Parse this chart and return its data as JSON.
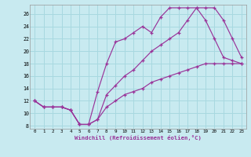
{
  "xlabel": "Windchill (Refroidissement éolien,°C)",
  "background_color": "#c8eaf0",
  "grid_color": "#a8d8e0",
  "line_color": "#993399",
  "xlim": [
    -0.5,
    23.5
  ],
  "ylim": [
    7.5,
    27.5
  ],
  "xticks": [
    0,
    1,
    2,
    3,
    4,
    5,
    6,
    7,
    8,
    9,
    10,
    11,
    12,
    13,
    14,
    15,
    16,
    17,
    18,
    19,
    20,
    21,
    22,
    23
  ],
  "yticks": [
    8,
    10,
    12,
    14,
    16,
    18,
    20,
    22,
    24,
    26
  ],
  "line1_x": [
    0,
    1,
    2,
    3,
    4,
    5,
    6,
    7,
    8,
    9,
    10,
    11,
    12,
    13,
    14,
    15,
    16,
    17,
    18,
    19,
    20,
    21,
    22,
    23
  ],
  "line1_y": [
    12,
    11,
    11,
    11,
    10.5,
    8.2,
    8.2,
    13.5,
    18,
    21.5,
    22,
    23,
    24,
    23,
    25.5,
    27,
    27,
    27,
    27,
    25,
    22,
    19,
    18.5,
    18
  ],
  "line2_x": [
    0,
    1,
    2,
    3,
    4,
    5,
    6,
    7,
    8,
    9,
    10,
    11,
    12,
    13,
    14,
    15,
    16,
    17,
    18,
    19,
    20,
    21,
    22,
    23
  ],
  "line2_y": [
    12,
    11,
    11,
    11,
    10.5,
    8.2,
    8.2,
    9,
    13,
    14.5,
    16,
    17,
    18.5,
    20,
    21,
    22,
    23,
    25,
    27,
    27,
    27,
    25,
    22,
    19
  ],
  "line3_x": [
    0,
    1,
    2,
    3,
    4,
    5,
    6,
    7,
    8,
    9,
    10,
    11,
    12,
    13,
    14,
    15,
    16,
    17,
    18,
    19,
    20,
    21,
    22,
    23
  ],
  "line3_y": [
    12,
    11,
    11,
    11,
    10.5,
    8.2,
    8.2,
    9,
    11,
    12,
    13,
    13.5,
    14,
    15,
    15.5,
    16,
    16.5,
    17,
    17.5,
    18,
    18,
    18,
    18,
    18
  ]
}
